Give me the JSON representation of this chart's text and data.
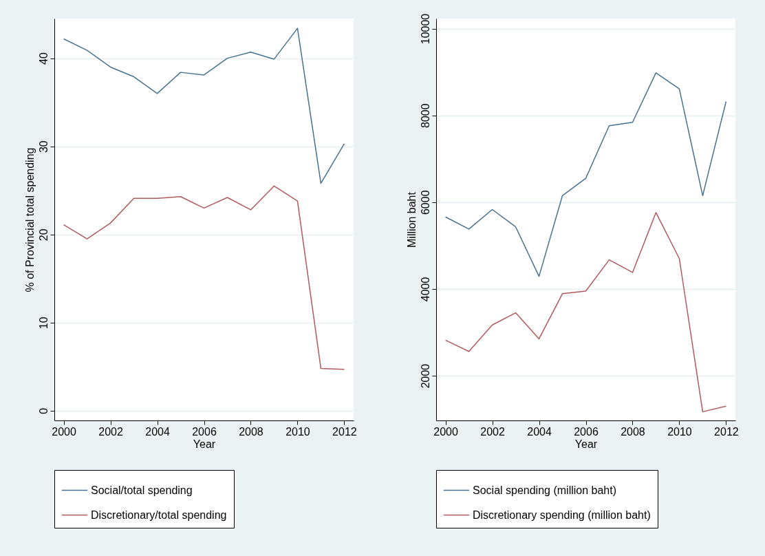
{
  "chart_data": [
    {
      "type": "line",
      "xlabel": "Year",
      "ylabel": "% of Provincial total spending",
      "x": [
        2000,
        2001,
        2002,
        2003,
        2004,
        2005,
        2006,
        2007,
        2008,
        2009,
        2010,
        2011,
        2012
      ],
      "series": [
        {
          "name": "Social/total spending",
          "color": "#47728f",
          "values": [
            42.2,
            40.9,
            39.0,
            37.9,
            36.0,
            38.4,
            38.1,
            40.0,
            40.7,
            39.9,
            43.4,
            25.8,
            30.3
          ]
        },
        {
          "name": "Discretionary/total spending",
          "color": "#b0595e",
          "values": [
            21.1,
            19.5,
            21.3,
            24.1,
            24.1,
            24.3,
            23.0,
            24.2,
            22.8,
            25.5,
            23.8,
            4.8,
            4.7
          ]
        }
      ],
      "xlim": [
        1999.6,
        2012.4
      ],
      "xticks": [
        2000,
        2002,
        2004,
        2006,
        2008,
        2010,
        2012
      ],
      "ylim": [
        -1.1,
        44.5
      ],
      "yticks": [
        0,
        10,
        20,
        30,
        40
      ],
      "grid": "y",
      "legend": "bottom"
    },
    {
      "type": "line",
      "xlabel": "Year",
      "ylabel": "Million baht",
      "x": [
        2000,
        2001,
        2002,
        2003,
        2004,
        2005,
        2006,
        2007,
        2008,
        2009,
        2010,
        2011,
        2012
      ],
      "series": [
        {
          "name": "Social spending (million baht)",
          "color": "#47728f",
          "values": [
            5660,
            5380,
            5830,
            5430,
            4290,
            6150,
            6550,
            7760,
            7840,
            8980,
            8610,
            6150,
            8320
          ]
        },
        {
          "name": "Discretionary spending (million baht)",
          "color": "#b0595e",
          "values": [
            2820,
            2560,
            3170,
            3450,
            2850,
            3890,
            3950,
            4670,
            4380,
            5760,
            4700,
            1170,
            1300
          ]
        }
      ],
      "xlim": [
        1999.6,
        2012.4
      ],
      "xticks": [
        2000,
        2002,
        2004,
        2006,
        2008,
        2010,
        2012
      ],
      "ylim": [
        970,
        10230
      ],
      "yticks": [
        2000,
        4000,
        6000,
        8000,
        10000
      ],
      "grid": "y",
      "legend": "bottom"
    }
  ]
}
